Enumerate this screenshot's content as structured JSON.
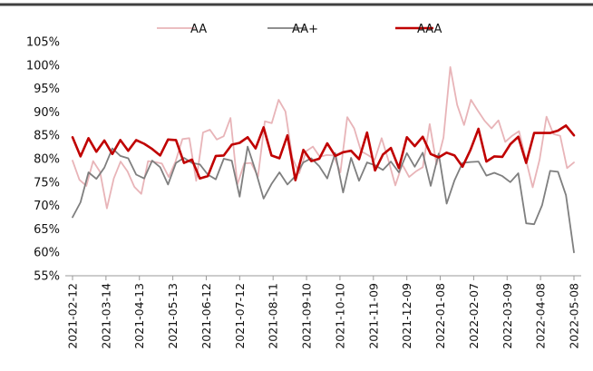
{
  "chart_data": {
    "type": "line",
    "title": "",
    "xlabel": "",
    "ylabel": "",
    "ylim": [
      55,
      105
    ],
    "y_ticks": [
      55,
      60,
      65,
      70,
      75,
      80,
      85,
      90,
      95,
      100,
      105
    ],
    "y_tick_labels": [
      "55%",
      "60%",
      "65%",
      "70%",
      "75%",
      "80%",
      "85%",
      "90%",
      "95%",
      "100%",
      "105%"
    ],
    "x_tick_labels": [
      "2021-02-12",
      "2021-03-14",
      "2021-04-13",
      "2021-05-13",
      "2021-06-12",
      "2021-07-12",
      "2021-08-11",
      "2021-09-10",
      "2021-10-10",
      "2021-11-09",
      "2021-12-09",
      "2022-01-08",
      "2022-02-07",
      "2022-03-09",
      "2022-04-08",
      "2022-05-08"
    ],
    "x_tick_index": [
      0,
      6,
      12,
      18,
      24,
      30,
      36,
      42,
      48,
      54,
      60,
      66,
      72,
      78,
      84,
      90
    ],
    "legend_position": "top",
    "grid": false,
    "colors": {
      "AA": "#e8b4b8",
      "AA+": "#7f7f7f",
      "AAA": "#c00000",
      "top_border": "#404040"
    },
    "series": [
      {
        "name": "AA",
        "values": [
          79.6,
          75.5,
          74.2,
          79.5,
          77.2,
          69.4,
          75.8,
          79.4,
          77.3,
          74.0,
          72.5,
          79.5,
          79.3,
          79.0,
          76.1,
          79.4,
          84.2,
          84.4,
          75.3,
          85.6,
          86.2,
          84.1,
          84.8,
          88.7,
          74.5,
          79.0,
          79.1,
          76.2,
          88.0,
          87.6,
          92.6,
          90.1,
          80.2,
          76.9,
          81.6,
          82.6,
          80.4,
          80.8,
          80.7,
          77.1,
          88.9,
          86.5,
          81.6,
          80.8,
          79.8,
          84.4,
          79.6,
          74.3,
          78.8,
          76.1,
          77.3,
          78.2,
          87.4,
          78.8,
          84.5,
          99.6,
          91.5,
          87.2,
          92.6,
          90.3,
          88.1,
          86.5,
          88.2,
          83.6,
          84.9,
          85.9,
          79.8,
          73.9,
          79.8,
          89.0,
          85.3,
          84.9,
          78.0,
          79.2
        ]
      },
      {
        "name": "AA+",
        "values": [
          67.5,
          70.7,
          77.1,
          75.7,
          78.1,
          82.2,
          80.6,
          80.1,
          76.6,
          75.8,
          79.6,
          78.2,
          74.5,
          79.1,
          80.2,
          79.1,
          78.8,
          76.6,
          75.6,
          80.0,
          79.6,
          71.9,
          82.6,
          77.4,
          71.5,
          74.6,
          77.1,
          74.5,
          76.3,
          79.2,
          80.1,
          78.4,
          75.8,
          81.2,
          72.8,
          80.2,
          75.3,
          79.2,
          78.6,
          77.6,
          79.4,
          77.1,
          81.2,
          78.3,
          81.3,
          74.2,
          81.1,
          70.4,
          75.4,
          79.1,
          79.3,
          79.4,
          76.4,
          77.0,
          76.3,
          75.0,
          76.9,
          66.2,
          66.0,
          70.1,
          77.4,
          77.2,
          72.2,
          60.0
        ]
      },
      {
        "name": "AAA",
        "values": [
          84.6,
          80.5,
          84.4,
          81.5,
          83.9,
          81.0,
          84.0,
          81.7,
          84.0,
          83.2,
          82.1,
          80.7,
          84.1,
          84.0,
          79.1,
          79.8,
          75.8,
          76.3,
          80.6,
          80.7,
          83.0,
          83.4,
          84.6,
          82.2,
          86.7,
          80.7,
          80.1,
          85.0,
          75.4,
          81.9,
          79.5,
          80.0,
          83.3,
          80.6,
          81.4,
          81.7,
          79.9,
          85.6,
          77.5,
          80.9,
          82.3,
          78.0,
          84.6,
          82.7,
          84.7,
          81.0,
          80.3,
          81.3,
          80.7,
          78.3,
          81.9,
          86.4,
          79.4,
          80.5,
          80.4,
          83.1,
          84.7,
          79.1,
          85.5,
          85.5,
          85.5,
          86.0,
          87.1,
          85.0
        ]
      }
    ]
  }
}
